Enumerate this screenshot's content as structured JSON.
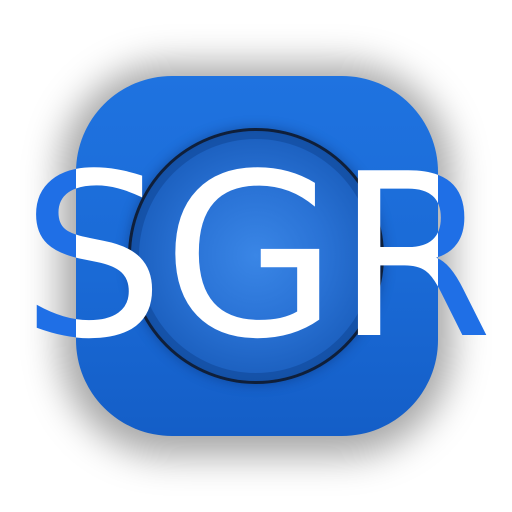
{
  "logo": {
    "wordmark": "SGR",
    "colors": {
      "tile": "#1a6ad6",
      "tile_dark": "#145ec7",
      "ring_border": "#0f1f3a",
      "letters_outside": "#1f6fe6",
      "letters_inside": "#ffffff",
      "background": "#ffffff"
    }
  }
}
